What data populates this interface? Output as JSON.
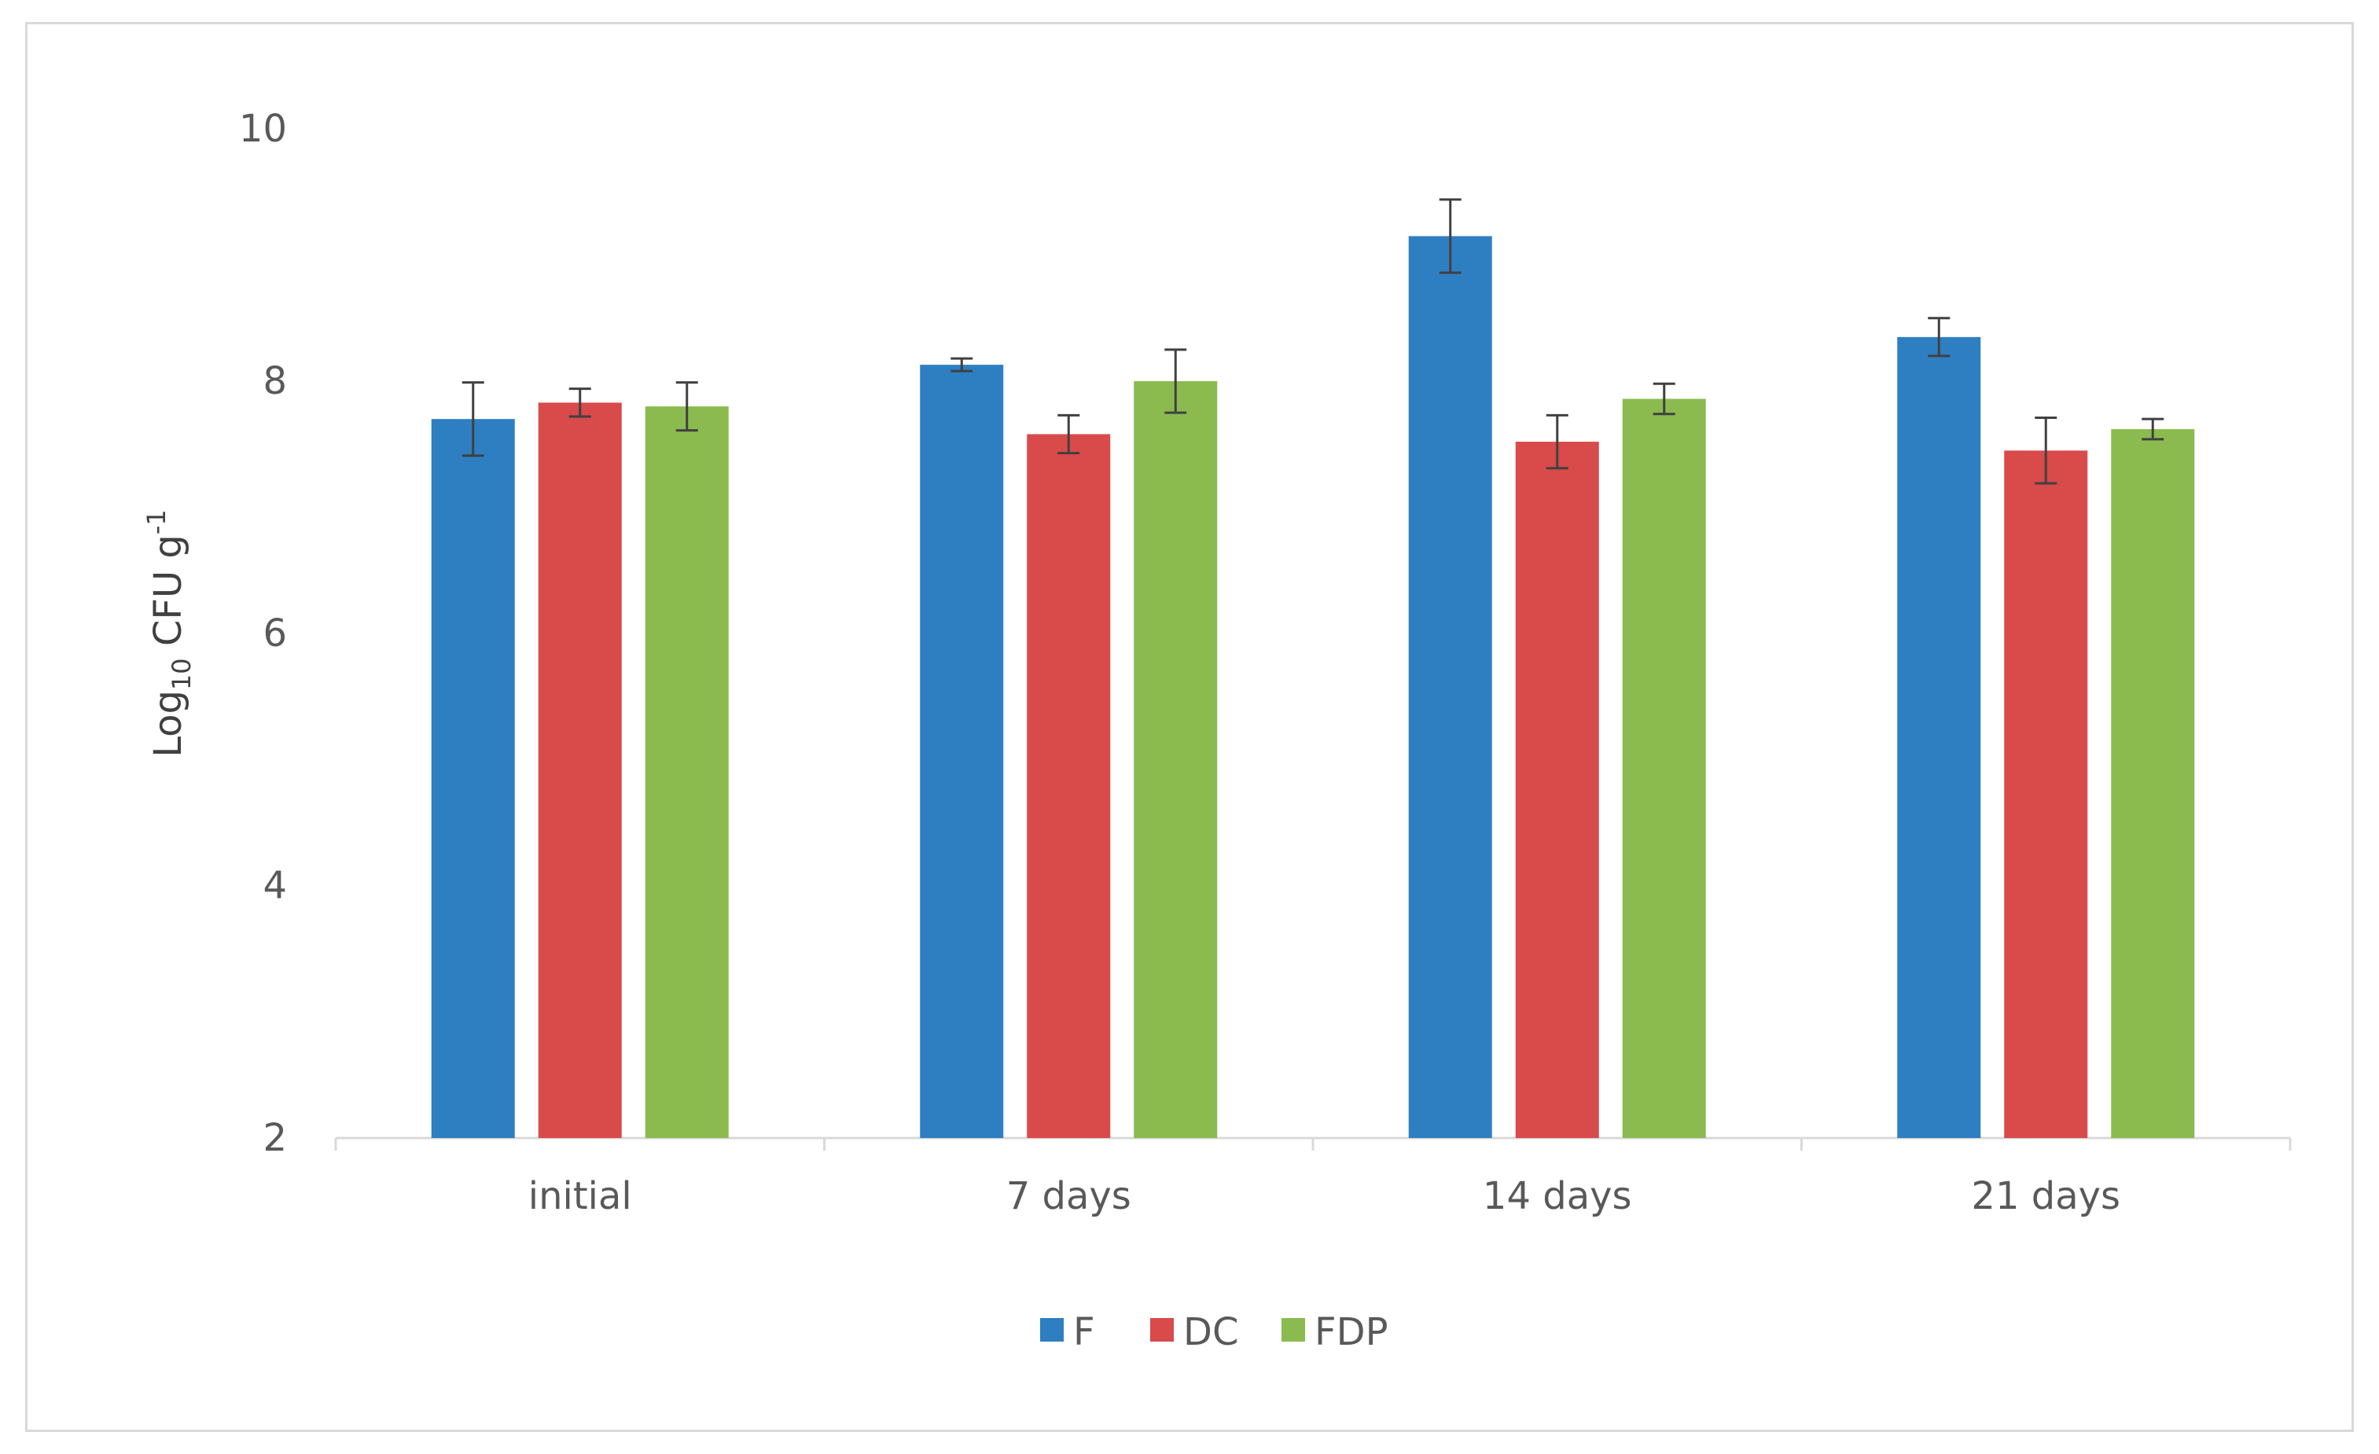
{
  "chart_data": {
    "type": "bar",
    "title": "",
    "xlabel": "",
    "ylabel": {
      "main": "Log",
      "subscript": "10",
      "rest": " CFU g",
      "superscript": "-1"
    },
    "ylim": [
      2,
      10
    ],
    "yticks": [
      2,
      4,
      6,
      8,
      10
    ],
    "grid": false,
    "legend_position": "bottom",
    "categories": [
      "initial",
      "7 days",
      "14 days",
      "21 days"
    ],
    "series": [
      {
        "name": "F",
        "color": "#2e7fc2",
        "values": [
          7.7,
          8.13,
          9.15,
          8.35
        ],
        "errors": [
          0.29,
          0.05,
          0.29,
          0.15
        ]
      },
      {
        "name": "DC",
        "color": "#d94a4a",
        "values": [
          7.83,
          7.58,
          7.52,
          7.45
        ],
        "errors": [
          0.11,
          0.15,
          0.21,
          0.26
        ]
      },
      {
        "name": "FDP",
        "color": "#8bbb4f",
        "values": [
          7.8,
          8.0,
          7.86,
          7.62
        ],
        "errors": [
          0.19,
          0.25,
          0.12,
          0.08
        ]
      }
    ]
  }
}
